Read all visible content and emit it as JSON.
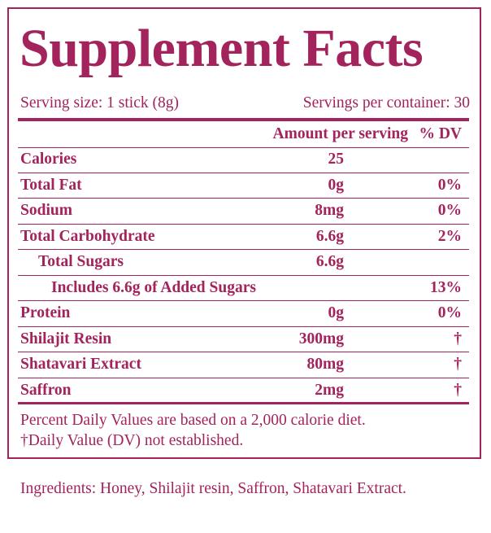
{
  "title": "Supplement Facts",
  "serving_size": "Serving size: 1 stick (8g)",
  "servings_per_container": "Servings per container: 30",
  "table": {
    "header": [
      "Amount per serving",
      "% DV"
    ],
    "rows": [
      {
        "name": "Calories",
        "amount": "25"
      },
      {
        "name": "Total Fat",
        "amount": "0g",
        "dv": "0%"
      },
      {
        "name": "Sodium",
        "amount": "8mg",
        "dv": "0%"
      },
      {
        "name": "Total Carbohydrate",
        "amount": "6.6g",
        "dv": "2%"
      },
      {
        "name": "Total Sugars",
        "amount": "6.6g"
      },
      {
        "name": "Includes 6.6g of Added Sugars",
        "dv": "13%"
      },
      {
        "name": "Protein",
        "amount": "0g",
        "dv": "0%"
      },
      {
        "name": "Shilajit Resin",
        "amount": "300mg",
        "dv": "†"
      },
      {
        "name": "Shatavari Extract",
        "amount": "80mg",
        "dv": "†"
      },
      {
        "name": "Saffron",
        "amount": "2mg",
        "dv": "†"
      }
    ]
  },
  "footnotes": [
    "Percent Daily Values are based on a 2,000 calorie diet.",
    "†Daily Value (DV) not established."
  ],
  "ingredients": "Ingredients: Honey, Shilajit resin, Saffron, Shatavari Extract."
}
